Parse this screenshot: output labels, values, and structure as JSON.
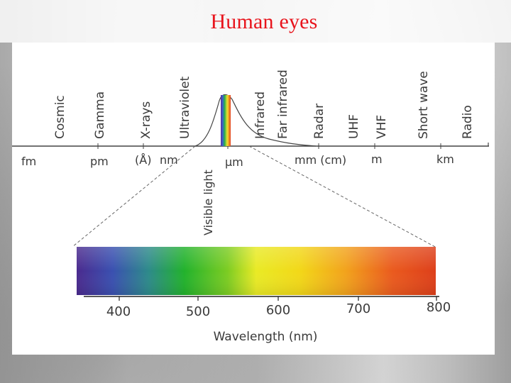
{
  "slide": {
    "title": "Human eyes"
  },
  "spectrum": {
    "regions": [
      "Cosmic",
      "Gamma",
      "X-rays",
      "Ultraviolet",
      "Infrared",
      "Far infrared",
      "Radar",
      "UHF",
      "VHF",
      "Short wave",
      "Radio"
    ],
    "units": [
      "fm",
      "pm",
      "(Å)",
      "nm",
      "μm",
      "mm (cm)",
      "m",
      "km"
    ],
    "visible_label": "Visible light"
  },
  "visible_bar": {
    "ticks": [
      "400",
      "500",
      "600",
      "700",
      "800"
    ],
    "axis_label": "Wavelength (nm)"
  }
}
